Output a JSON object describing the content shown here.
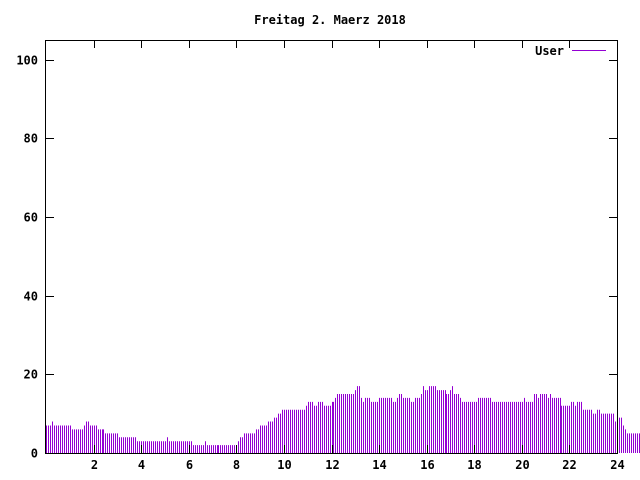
{
  "chart_data": {
    "type": "bar",
    "title": "Freitag 2. Maerz 2018",
    "xlabel": "",
    "ylabel": "",
    "xlim": [
      0,
      24
    ],
    "ylim": [
      0,
      105
    ],
    "x_ticks": [
      2,
      4,
      6,
      8,
      10,
      12,
      14,
      16,
      18,
      20,
      22,
      24
    ],
    "y_ticks": [
      0,
      20,
      40,
      60,
      80,
      100
    ],
    "grid": false,
    "legend_position": "top-right",
    "colors": {
      "series": "#9400d3",
      "axis": "#000000"
    },
    "series": [
      {
        "name": "User",
        "x_step_minutes": 5,
        "values": [
          7,
          7,
          7,
          8,
          7,
          7,
          7,
          7,
          7,
          7,
          7,
          7,
          7,
          6,
          6,
          6,
          6,
          6,
          6,
          7,
          8,
          8,
          7,
          7,
          7,
          7,
          6,
          6,
          6,
          6,
          5,
          5,
          5,
          5,
          5,
          5,
          5,
          4,
          4,
          4,
          4,
          4,
          4,
          4,
          4,
          4,
          3,
          3,
          3,
          3,
          3,
          3,
          3,
          3,
          3,
          3,
          3,
          3,
          3,
          3,
          3,
          4,
          3,
          3,
          3,
          3,
          3,
          3,
          3,
          3,
          3,
          3,
          3,
          3,
          2,
          2,
          2,
          2,
          2,
          2,
          3,
          2,
          2,
          2,
          2,
          2,
          2,
          2,
          2,
          2,
          2,
          2,
          2,
          2,
          2,
          2,
          2,
          3,
          4,
          4,
          5,
          5,
          5,
          5,
          5,
          5,
          6,
          6,
          7,
          7,
          7,
          7,
          8,
          8,
          8,
          9,
          9,
          10,
          10,
          11,
          11,
          11,
          11,
          11,
          11,
          11,
          11,
          11,
          11,
          11,
          11,
          12,
          13,
          13,
          13,
          12,
          12,
          13,
          13,
          13,
          12,
          12,
          12,
          12,
          13,
          13,
          14,
          15,
          15,
          15,
          15,
          15,
          15,
          15,
          15,
          15,
          16,
          17,
          17,
          14,
          13,
          14,
          14,
          14,
          13,
          13,
          13,
          13,
          14,
          14,
          14,
          14,
          14,
          14,
          14,
          13,
          13,
          14,
          15,
          15,
          14,
          14,
          14,
          14,
          13,
          13,
          14,
          14,
          14,
          15,
          17,
          16,
          16,
          17,
          17,
          17,
          17,
          16,
          16,
          16,
          16,
          16,
          15,
          15,
          16,
          17,
          15,
          15,
          15,
          14,
          13,
          13,
          13,
          13,
          13,
          13,
          13,
          13,
          14,
          14,
          14,
          14,
          14,
          14,
          14,
          13,
          13,
          13,
          13,
          13,
          13,
          13,
          13,
          13,
          13,
          13,
          13,
          13,
          13,
          13,
          13,
          14,
          13,
          13,
          13,
          13,
          15,
          15,
          14,
          15,
          15,
          15,
          15,
          14,
          15,
          14,
          14,
          14,
          14,
          14,
          12,
          12,
          12,
          12,
          12,
          13,
          13,
          12,
          13,
          13,
          13,
          11,
          11,
          11,
          11,
          11,
          10,
          10,
          11,
          11,
          10,
          10,
          10,
          10,
          10,
          10,
          10,
          8,
          8,
          9,
          9,
          7,
          6,
          5,
          5,
          5,
          5,
          5,
          5,
          5
        ]
      }
    ]
  }
}
